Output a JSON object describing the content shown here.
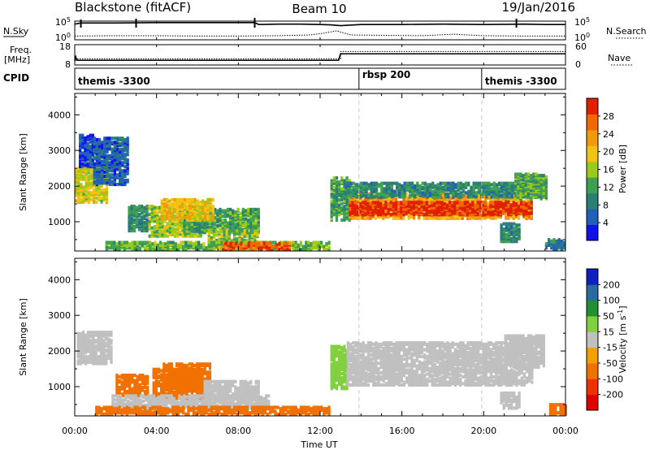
{
  "header": {
    "station": "Blackstone (fitACF)",
    "beam": "Beam 10",
    "date": "19/Jan/2016"
  },
  "colors": {
    "axis": "#000000",
    "dashed_marker": "#c8c8c8",
    "ground_scatter": "#bfbfbf"
  },
  "chart_data": [
    {
      "type": "line",
      "panel": "noise",
      "left_label": "N.Sky",
      "left_ticks": [
        "10^5",
        "10^0"
      ],
      "right_label": "N.Search",
      "right_ticks": [
        "10^5",
        "10^0"
      ],
      "xlim_hours": [
        0,
        24
      ],
      "series": [
        {
          "name": "N.Sky",
          "style": "solid",
          "x": [
            0,
            0.3,
            2,
            4,
            6,
            8,
            8.8,
            9,
            10,
            11,
            12,
            12.5,
            13,
            14,
            16,
            18,
            20,
            22,
            23,
            24
          ],
          "y_log": [
            4.2,
            4.5,
            4.5,
            4.6,
            4.6,
            4.6,
            4.6,
            4.1,
            4.2,
            4.2,
            4.1,
            4.0,
            3.8,
            4.1,
            4.1,
            4.2,
            4.1,
            4.2,
            4.1,
            4.1
          ]
        },
        {
          "name": "N.Search",
          "style": "dotted",
          "x": [
            0,
            2,
            4,
            6,
            8,
            10,
            11.5,
            12.2,
            12.8,
            13.5,
            15,
            17,
            18.5,
            20,
            22,
            24
          ],
          "y_log": [
            1.0,
            1.1,
            1.1,
            1.0,
            1.0,
            1.1,
            1.3,
            1.8,
            2.4,
            1.3,
            1.2,
            1.1,
            1.5,
            1.1,
            1.0,
            1.0
          ]
        }
      ]
    },
    {
      "type": "line",
      "panel": "freq_nave",
      "left_label": "Freq.",
      "left_unit": "[MHz]",
      "left_ticks": [
        "18",
        "8"
      ],
      "right_label": "Nave",
      "right_ticks": [
        "60",
        "0"
      ],
      "xlim_hours": [
        0,
        24
      ],
      "series": [
        {
          "name": "Freq.",
          "style": "solid",
          "x": [
            0,
            0.05,
            0.1,
            12.9,
            13.0,
            24
          ],
          "y_mhz": [
            10,
            12,
            10.3,
            10.3,
            13.5,
            13.5
          ]
        },
        {
          "name": "Nave",
          "style": "dotted",
          "x": [
            0,
            13,
            13.0,
            24
          ],
          "y": [
            18,
            18,
            40,
            40
          ]
        }
      ]
    },
    {
      "type": "table",
      "panel": "cpid",
      "label": "CPID",
      "segments": [
        {
          "name": "themis -3300",
          "start_h": 0,
          "end_h": 13.9
        },
        {
          "name": "rbsp 200",
          "start_h": 13.9,
          "end_h": 19.9
        },
        {
          "name": "themis -3300",
          "start_h": 19.9,
          "end_h": 24
        }
      ]
    },
    {
      "type": "heatmap",
      "panel": "power",
      "ylabel": "Slant Range [km]",
      "ylim": [
        180,
        4600
      ],
      "yticks": [
        1000,
        2000,
        3000,
        4000
      ],
      "xlim_hours": [
        0,
        24
      ],
      "colorbar_label": "Power [dB]",
      "colorbar_ticks": [
        4,
        8,
        12,
        16,
        20,
        24,
        28
      ],
      "colorbar_range": [
        0,
        32
      ],
      "colorbar_colors": [
        "#1111ee",
        "#2060b8",
        "#2a7f74",
        "#3ea050",
        "#9cca18",
        "#f0c410",
        "#f39a0c",
        "#ef6800",
        "#e02000"
      ],
      "regions": [
        {
          "h0": 0,
          "h1": 1.6,
          "r0": 1500,
          "r1": 2500,
          "v": 18
        },
        {
          "h0": 0.2,
          "h1": 0.9,
          "r0": 2500,
          "r1": 3400,
          "v": 4
        },
        {
          "h0": 0.9,
          "h1": 2.6,
          "r0": 2000,
          "r1": 3300,
          "v": 6
        },
        {
          "h0": 2.6,
          "h1": 3.5,
          "r0": 700,
          "r1": 1400,
          "v": 10
        },
        {
          "h0": 3.6,
          "h1": 6.2,
          "r0": 550,
          "r1": 1400,
          "v": 16
        },
        {
          "h0": 5.3,
          "h1": 9.0,
          "r0": 650,
          "r1": 1300,
          "v": 12
        },
        {
          "h0": 4.2,
          "h1": 6.8,
          "r0": 1000,
          "r1": 1600,
          "v": 20
        },
        {
          "h0": 6.5,
          "h1": 9.0,
          "r0": 200,
          "r1": 700,
          "v": 15
        },
        {
          "h0": 1.5,
          "h1": 12.5,
          "r0": 180,
          "r1": 380,
          "v": 14
        },
        {
          "h0": 7.2,
          "h1": 10.5,
          "r0": 190,
          "r1": 360,
          "v": 28
        },
        {
          "h0": 12.5,
          "h1": 13.4,
          "r0": 1000,
          "r1": 2200,
          "v": 12
        },
        {
          "h0": 13.4,
          "h1": 22.4,
          "r0": 1050,
          "r1": 1750,
          "v": 22
        },
        {
          "h0": 13.4,
          "h1": 22.4,
          "r0": 1150,
          "r1": 1500,
          "v": 30
        },
        {
          "h0": 13.2,
          "h1": 23.0,
          "r0": 1650,
          "r1": 2050,
          "v": 10
        },
        {
          "h0": 21.5,
          "h1": 23.1,
          "r0": 1600,
          "r1": 2300,
          "v": 13
        },
        {
          "h0": 20.8,
          "h1": 21.8,
          "r0": 400,
          "r1": 900,
          "v": 10
        },
        {
          "h0": 23.0,
          "h1": 24.0,
          "r0": 180,
          "r1": 450,
          "v": 8
        }
      ]
    },
    {
      "type": "heatmap",
      "panel": "velocity",
      "ylabel": "Slant Range [km]",
      "ylim": [
        180,
        4600
      ],
      "yticks": [
        1000,
        2000,
        3000,
        4000
      ],
      "xlim_hours": [
        0,
        24
      ],
      "xticks": [
        "00:00",
        "04:00",
        "08:00",
        "12:00",
        "16:00",
        "20:00",
        "00:00"
      ],
      "xlabel": "Time UT",
      "colorbar_label": "Velocity [m s^-1]",
      "colorbar_ticks": [
        -200,
        -100,
        -50,
        -15,
        15,
        50,
        100,
        200
      ],
      "colorbar_colors": [
        "#e00000",
        "#ef3000",
        "#f07000",
        "#f0a000",
        "#c0c0c0",
        "#80d040",
        "#209030",
        "#2a6aa0",
        "#1020c0"
      ],
      "regions": [
        {
          "h0": 0.1,
          "h1": 1.8,
          "r0": 1600,
          "r1": 2500,
          "v": 0
        },
        {
          "h0": 2.0,
          "h1": 3.6,
          "r0": 700,
          "r1": 1300,
          "v": -60
        },
        {
          "h0": 3.8,
          "h1": 6.3,
          "r0": 600,
          "r1": 1450,
          "v": -80
        },
        {
          "h0": 4.3,
          "h1": 6.6,
          "r0": 900,
          "r1": 1600,
          "v": -70
        },
        {
          "h0": 1.8,
          "h1": 9.5,
          "r0": 350,
          "r1": 700,
          "v": 0
        },
        {
          "h0": 6.3,
          "h1": 9.0,
          "r0": 600,
          "r1": 1100,
          "v": 0
        },
        {
          "h0": 1.0,
          "h1": 12.5,
          "r0": 180,
          "r1": 400,
          "v": -60
        },
        {
          "h0": 12.5,
          "h1": 13.3,
          "r0": 900,
          "r1": 2100,
          "v": 40
        },
        {
          "h0": 13.3,
          "h1": 22.4,
          "r0": 1000,
          "r1": 2200,
          "v": 0
        },
        {
          "h0": 21.0,
          "h1": 23.0,
          "r0": 1500,
          "r1": 2400,
          "v": 0
        },
        {
          "h0": 20.8,
          "h1": 21.8,
          "r0": 350,
          "r1": 800,
          "v": 0
        },
        {
          "h0": 23.2,
          "h1": 24.0,
          "r0": 180,
          "r1": 450,
          "v": -60
        }
      ]
    }
  ]
}
